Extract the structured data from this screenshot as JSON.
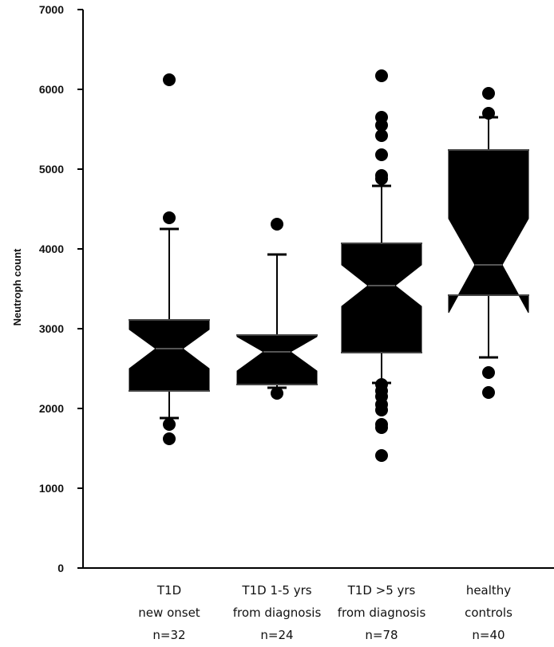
{
  "chart_data": {
    "type": "boxplot",
    "ylabel": "Neutroph count",
    "ylim": [
      0,
      7000
    ],
    "yticks": [
      0,
      1000,
      2000,
      3000,
      4000,
      5000,
      6000,
      7000
    ],
    "grid": false,
    "legend": "none",
    "box_color": "#000000",
    "categories": [
      {
        "lines": [
          "T1D",
          "new onset",
          "n=32"
        ]
      },
      {
        "lines": [
          "T1D 1-5 yrs",
          "from diagnosis",
          "n=24"
        ]
      },
      {
        "lines": [
          "T1D >5 yrs",
          "from diagnosis",
          "n=78"
        ]
      },
      {
        "lines": [
          "healthy",
          "controls",
          "n=40"
        ]
      }
    ],
    "boxes": [
      {
        "q1": 2220,
        "median": 2750,
        "q3": 3110,
        "notch_low": 2500,
        "notch_high": 2990,
        "whisker_low": 1880,
        "whisker_high": 4250,
        "outliers": [
          6120,
          4390,
          1800,
          1620
        ]
      },
      {
        "q1": 2300,
        "median": 2710,
        "q3": 2920,
        "notch_low": 2470,
        "notch_high": 2900,
        "whisker_low": 2260,
        "whisker_high": 3930,
        "outliers": [
          4310,
          2190
        ]
      },
      {
        "q1": 2700,
        "median": 3540,
        "q3": 4070,
        "notch_low": 3280,
        "notch_high": 3800,
        "whisker_low": 2320,
        "whisker_high": 4790,
        "outliers": [
          6170,
          5650,
          5550,
          5420,
          5180,
          4920,
          4880,
          2300,
          2220,
          2150,
          2050,
          1980,
          1800,
          1760,
          1410
        ]
      },
      {
        "q1": 3420,
        "median": 3800,
        "q3": 5240,
        "notch_low": 3200,
        "notch_high": 4380,
        "whisker_low": 2640,
        "whisker_high": 5650,
        "outliers": [
          5950,
          5700,
          2450,
          2200
        ]
      }
    ]
  }
}
